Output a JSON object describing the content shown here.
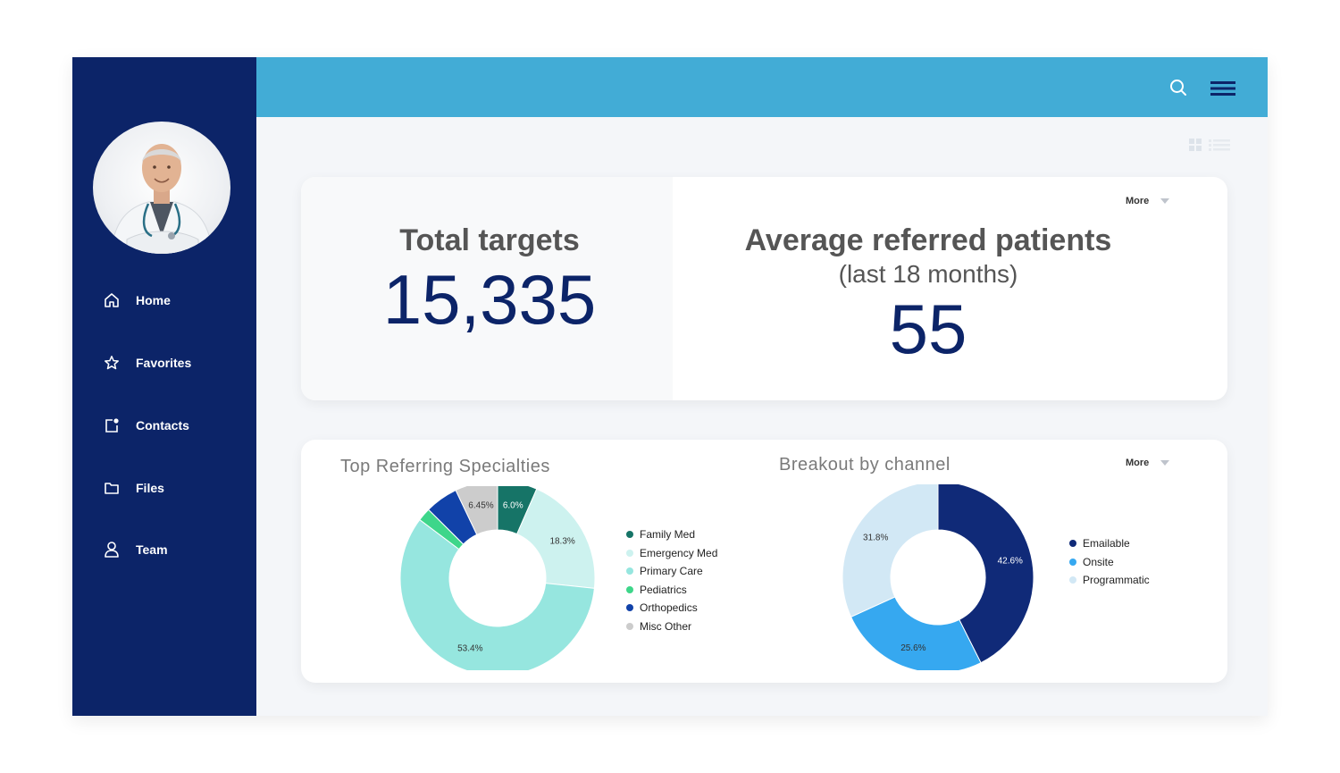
{
  "sidebar": {
    "items": [
      {
        "label": "Home",
        "icon": "home-icon"
      },
      {
        "label": "Favorites",
        "icon": "star-icon"
      },
      {
        "label": "Contacts",
        "icon": "contacts-icon"
      },
      {
        "label": "Files",
        "icon": "folder-icon"
      },
      {
        "label": "Team",
        "icon": "user-icon"
      }
    ]
  },
  "colors": {
    "sidebar": "#0c2468",
    "topbar": "#42acd6",
    "accent_number": "#0c2468"
  },
  "summary": {
    "total_targets_label": "Total targets",
    "total_targets_value": "15,335",
    "avg_referred_label": "Average referred patients",
    "avg_referred_sub": "(last 18 months)",
    "avg_referred_value": "55",
    "more_label": "More"
  },
  "charts": {
    "more_label": "More"
  },
  "chart_data": [
    {
      "type": "pie",
      "title": "Top Referring Specialties",
      "donut": true,
      "categories": [
        "Family Med",
        "Emergency Med",
        "Primary Care",
        "Pediatrics",
        "Orthopedics",
        "Misc Other"
      ],
      "values": [
        6.0,
        18.3,
        53.4,
        2.0,
        5.0,
        6.45
      ],
      "data_labels": [
        "6.0%",
        "18.3%",
        "53.4%",
        "",
        "",
        "6.45%"
      ],
      "colors": [
        "#167467",
        "#cdf2ef",
        "#96e6df",
        "#3ed68a",
        "#1142a9",
        "#cccccc"
      ],
      "legend": "right"
    },
    {
      "type": "pie",
      "title": "Breakout by channel",
      "donut": true,
      "categories": [
        "Emailable",
        "Onsite",
        "Programmatic"
      ],
      "values": [
        42.6,
        25.6,
        31.8
      ],
      "data_labels": [
        "42.6%",
        "25.6%",
        "31.8%"
      ],
      "colors": [
        "#102a78",
        "#36a8f0",
        "#d2e8f5"
      ],
      "legend": "right"
    }
  ]
}
